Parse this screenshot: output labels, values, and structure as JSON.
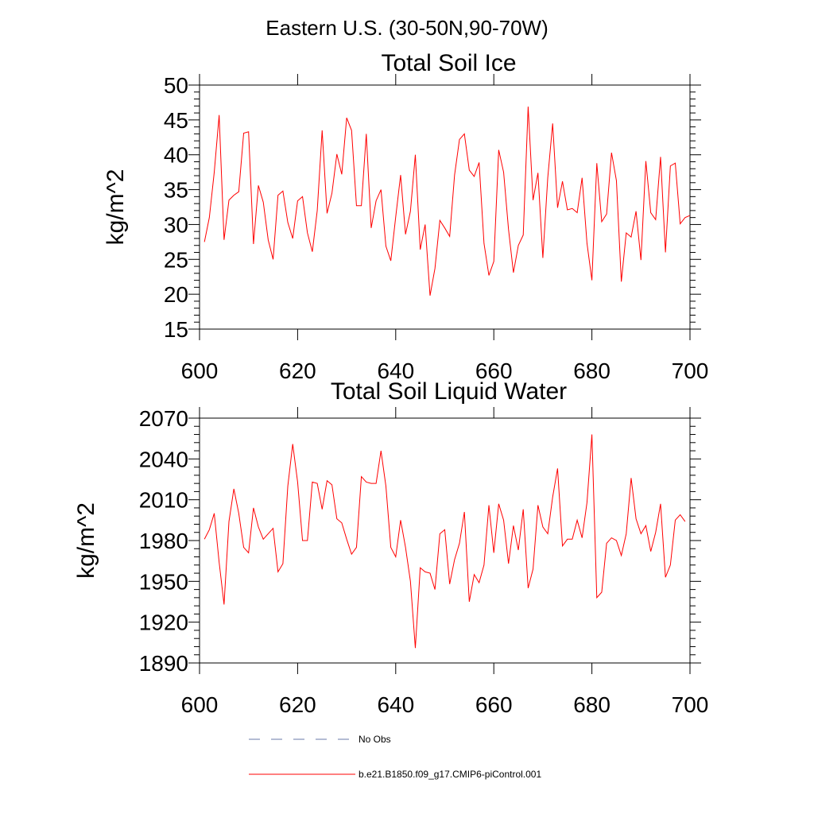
{
  "figure": {
    "title": "Eastern U.S. (30-50N,90-70W)"
  },
  "chart_data": [
    {
      "type": "line",
      "title": "Total Soil Ice",
      "xlabel": "",
      "ylabel": "kg/m^2",
      "xlim": [
        600,
        700
      ],
      "ylim": [
        15,
        50
      ],
      "xticks": [
        600,
        620,
        640,
        660,
        680,
        700
      ],
      "yticks": [
        15,
        20,
        25,
        30,
        35,
        40,
        45,
        50
      ],
      "x_start": 601,
      "series": [
        {
          "name": "b.e21.B1850.f09_g17.CMIP6-piControl.001",
          "color": "#ff0000",
          "values": [
            27.5,
            31,
            37.5,
            45.7,
            27.8,
            33.5,
            34.2,
            34.7,
            43.1,
            43.3,
            27.2,
            35.6,
            33.2,
            27.8,
            25,
            34.2,
            34.8,
            30.3,
            28,
            33.4,
            34,
            28.8,
            26.1,
            32,
            43.5,
            31.6,
            34.5,
            40.1,
            37.2,
            45.3,
            43.5,
            32.7,
            32.7,
            43,
            29.5,
            33.4,
            35,
            26.9,
            24.8,
            31.1,
            37.1,
            28.6,
            31.9,
            40,
            26.4,
            30,
            19.8,
            23.7,
            30.6,
            29.5,
            28.3,
            37.1,
            42.2,
            43,
            37.8,
            36.9,
            38.9,
            27.3,
            22.7,
            24.7,
            40.7,
            37.5,
            29.3,
            23.1,
            27,
            28.5,
            46.9,
            33.5,
            37.4,
            25.2,
            36.7,
            44.5,
            32.4,
            36.2,
            32.1,
            32.3,
            31.7,
            36.7,
            27.3,
            22,
            38.8,
            30.4,
            31.5,
            40.3,
            36.3,
            21.8,
            28.8,
            28.2,
            31.9,
            24.9,
            39.1,
            31.7,
            30.7,
            39.7,
            26,
            38.4,
            38.8,
            30.1,
            31,
            31.3
          ]
        }
      ]
    },
    {
      "type": "line",
      "title": "Total Soil Liquid Water",
      "xlabel": "",
      "ylabel": "kg/m^2",
      "xlim": [
        600,
        700
      ],
      "ylim": [
        1890,
        2070
      ],
      "xticks": [
        600,
        620,
        640,
        660,
        680,
        700
      ],
      "yticks": [
        1890,
        1920,
        1950,
        1980,
        2010,
        2040,
        2070
      ],
      "x_start": 601,
      "series": [
        {
          "name": "b.e21.B1850.f09_g17.CMIP6-piControl.001",
          "color": "#ff0000",
          "values": [
            1981,
            1988,
            2000,
            1964,
            1933,
            1994,
            2018,
            2000,
            1975,
            1971,
            2004,
            1990,
            1981,
            1985,
            1989,
            1957,
            1963,
            2020,
            2051,
            2023,
            1980,
            1980,
            2023,
            2022,
            2003,
            2024,
            2021,
            1996,
            1993,
            1981,
            1970,
            1975,
            2027,
            2023,
            2022,
            2022,
            2046,
            2020,
            1975,
            1968,
            1995,
            1975,
            1950,
            1901,
            1960,
            1957,
            1956,
            1944,
            1985,
            1988,
            1948,
            1966,
            1978,
            2001,
            1935,
            1955,
            1949,
            1962,
            2006,
            1971,
            2007,
            1995,
            1963,
            1991,
            1973,
            2003,
            1945,
            1959,
            2006,
            1990,
            1985,
            2012,
            2033,
            1976,
            1981,
            1981,
            1995,
            1982,
            2008,
            2058,
            1938,
            1942,
            1978,
            1982,
            1980,
            1969,
            1985,
            2026,
            1996,
            1985,
            1991,
            1972,
            1986,
            2007,
            1953,
            1962,
            1995,
            1999,
            1994
          ]
        }
      ]
    }
  ],
  "legend": [
    {
      "label": "No Obs",
      "style": "dashed",
      "color": "#6a78a8"
    },
    {
      "label": "b.e21.B1850.f09_g17.CMIP6-piControl.001",
      "style": "solid",
      "color": "#ff0000"
    }
  ]
}
